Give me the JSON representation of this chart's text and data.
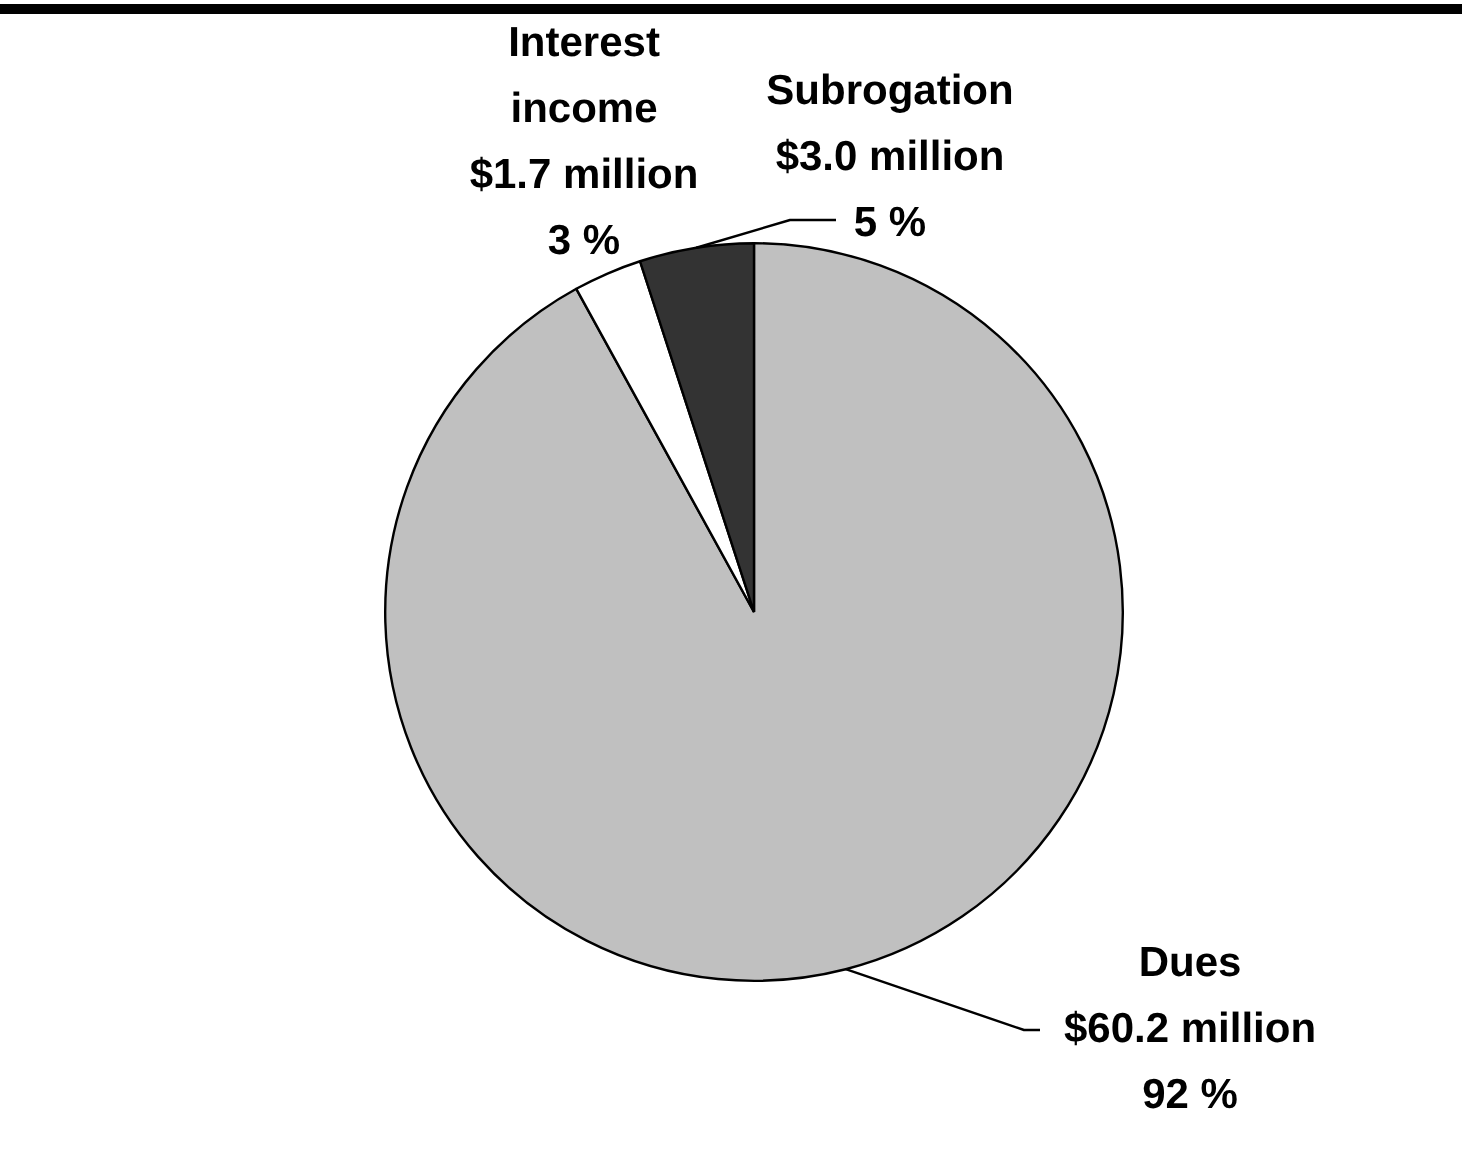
{
  "chart_data": {
    "type": "pie",
    "categories": [
      "Dues",
      "Interest income",
      "Subrogation"
    ],
    "values": [
      92,
      3,
      5
    ],
    "colors": [
      "#c0c0c0",
      "#ffffff",
      "#333333"
    ],
    "value_labels": [
      "92 %",
      "3 %",
      "5 %"
    ],
    "annotations": [
      "$60.2 million",
      "$1.7 million",
      "$3.0 million"
    ],
    "legend": false
  }
}
